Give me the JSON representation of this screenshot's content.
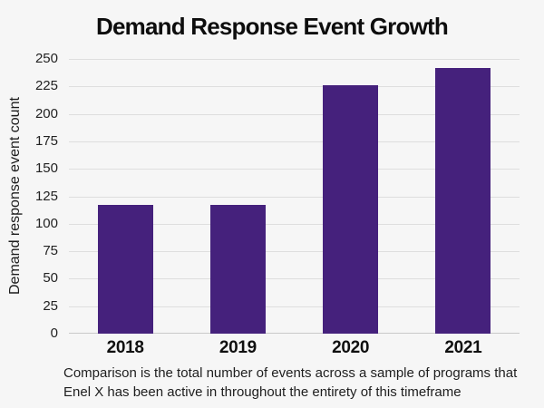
{
  "chart_data": {
    "type": "bar",
    "title": "Demand Response Event Growth",
    "ylabel": "Demand response event count",
    "xlabel": "",
    "categories": [
      "2018",
      "2019",
      "2020",
      "2021"
    ],
    "values": [
      117,
      117,
      226,
      242
    ],
    "ylim": [
      0,
      250
    ],
    "yticks": [
      0,
      25,
      50,
      75,
      100,
      125,
      150,
      175,
      200,
      225,
      250
    ],
    "grid": "horizontal",
    "legend": "none",
    "bar_color": "#45217C",
    "background_color": "#f6f6f6",
    "gridline_color": "#dedede",
    "caption_lines": [
      "Comparison is the total number of events across a sample of programs that",
      "Enel X has been active in throughout the entirety of this timeframe"
    ]
  }
}
